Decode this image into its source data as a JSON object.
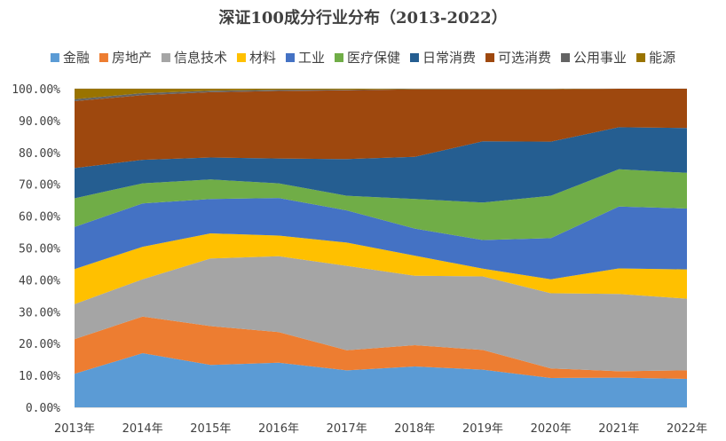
{
  "chart_data": {
    "type": "area",
    "stacked": "percent",
    "title": "深证100成分行业分布（2013-2022）",
    "xlabel": "",
    "ylabel": "",
    "ylim": [
      0,
      100
    ],
    "y_ticks": [
      "0.00%",
      "10.00%",
      "20.00%",
      "30.00%",
      "40.00%",
      "50.00%",
      "60.00%",
      "70.00%",
      "80.00%",
      "90.00%",
      "100.00%"
    ],
    "categories": [
      "2013年",
      "2014年",
      "2015年",
      "2016年",
      "2017年",
      "2018年",
      "2019年",
      "2020年",
      "2021年",
      "2022年"
    ],
    "legend_position": "top",
    "series": [
      {
        "name": "金融",
        "color": "#5B9BD5",
        "values": [
          10.5,
          17.0,
          13.3,
          14.0,
          11.6,
          12.8,
          11.8,
          9.2,
          9.3,
          8.9
        ]
      },
      {
        "name": "房地产",
        "color": "#ED7D31",
        "values": [
          10.9,
          11.5,
          12.2,
          9.6,
          6.3,
          6.7,
          6.2,
          3.0,
          2.0,
          2.7
        ]
      },
      {
        "name": "信息技术",
        "color": "#A5A5A5",
        "values": [
          11.0,
          11.7,
          21.2,
          23.8,
          26.5,
          21.8,
          23.1,
          23.6,
          24.3,
          22.5
        ]
      },
      {
        "name": "材料",
        "color": "#FFC000",
        "values": [
          11.0,
          10.2,
          7.9,
          6.5,
          7.3,
          6.3,
          2.4,
          4.4,
          8.0,
          9.2
        ]
      },
      {
        "name": "工业",
        "color": "#4472C4",
        "values": [
          13.2,
          13.6,
          10.8,
          11.8,
          10.1,
          8.5,
          9.0,
          12.9,
          19.4,
          19.1
        ]
      },
      {
        "name": "医疗保健",
        "color": "#70AD47",
        "values": [
          9.0,
          6.3,
          6.1,
          4.6,
          4.6,
          9.3,
          11.8,
          13.3,
          11.7,
          11.2
        ]
      },
      {
        "name": "日常消费",
        "color": "#255E91",
        "values": [
          9.5,
          7.4,
          6.9,
          7.8,
          11.5,
          13.2,
          19.2,
          17.0,
          13.2,
          14.1
        ]
      },
      {
        "name": "可选消费",
        "color": "#9E480E",
        "values": [
          21.0,
          20.3,
          20.5,
          21.2,
          21.6,
          21.2,
          16.3,
          16.4,
          12.1,
          12.3
        ]
      },
      {
        "name": "公用事业",
        "color": "#636363",
        "values": [
          0.6,
          0.6,
          0.5,
          0.4,
          0.2,
          0.1,
          0.1,
          0.1,
          0.0,
          0.0
        ]
      },
      {
        "name": "能源",
        "color": "#997300",
        "values": [
          3.3,
          1.4,
          0.6,
          0.3,
          0.3,
          0.1,
          0.1,
          0.1,
          0.0,
          0.0
        ]
      }
    ]
  }
}
